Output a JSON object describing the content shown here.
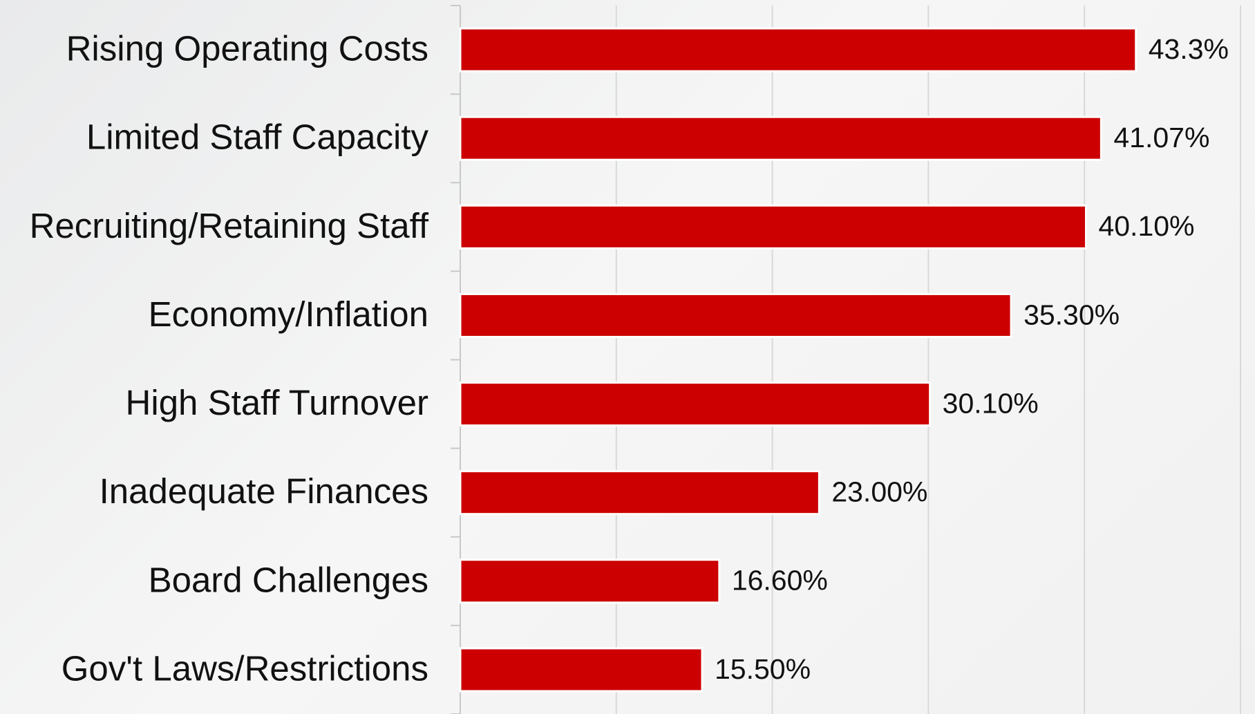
{
  "chart_data": {
    "type": "hbar",
    "categories": [
      "Rising Operating Costs",
      "Limited Staff Capacity",
      "Recruiting/Retaining Staff",
      "Economy/Inflation",
      "High Staff Turnover",
      "Inadequate Finances",
      "Board Challenges",
      "Gov't Laws/Restrictions"
    ],
    "values": [
      43.3,
      41.07,
      40.1,
      35.3,
      30.1,
      23.0,
      16.6,
      15.5
    ],
    "value_labels": [
      "43.3%",
      "41.07%",
      "40.10%",
      "35.30%",
      "30.10%",
      "23.00%",
      "16.60%",
      "15.50%"
    ],
    "color": "#cc0000",
    "xlim": [
      0,
      50
    ],
    "xticks": [
      0,
      10,
      20,
      30,
      40,
      50
    ],
    "grid": true
  }
}
